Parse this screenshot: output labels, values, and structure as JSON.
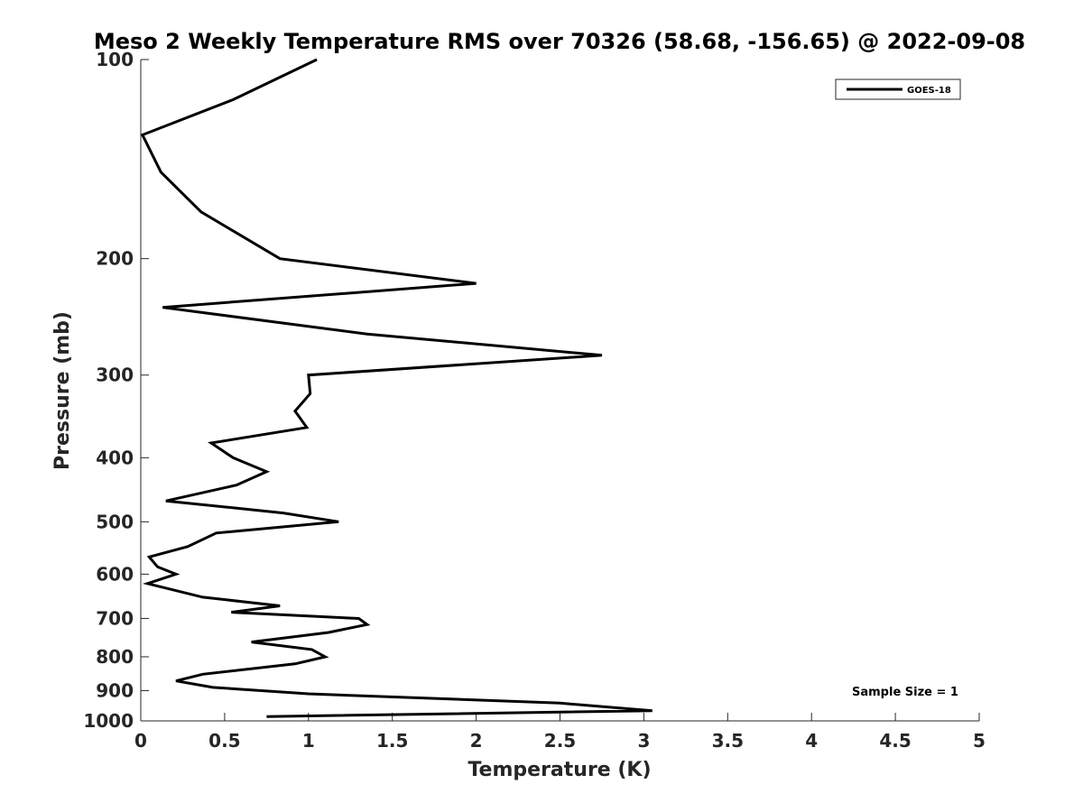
{
  "chart_data": {
    "type": "line",
    "title": "Meso 2 Weekly Temperature RMS over 70326 (58.68, -156.65) @ 2022-09-08",
    "xlabel": "Temperature (K)",
    "ylabel": "Pressure (mb)",
    "xlim": [
      0,
      5
    ],
    "ylim": [
      100,
      1000
    ],
    "y_scale": "log",
    "y_reversed": true,
    "x_ticks": [
      0,
      0.5,
      1,
      1.5,
      2,
      2.5,
      3,
      3.5,
      4,
      4.5,
      5
    ],
    "x_tick_labels": [
      "0",
      "0.5",
      "1",
      "1.5",
      "2",
      "2.5",
      "3",
      "3.5",
      "4",
      "4.5",
      "5"
    ],
    "y_ticks": [
      100,
      200,
      300,
      400,
      500,
      600,
      700,
      800,
      900,
      1000
    ],
    "y_tick_labels": [
      "100",
      "200",
      "300",
      "400",
      "500",
      "600",
      "700",
      "800",
      "900",
      "1000"
    ],
    "grid": false,
    "legend_position": "top-right",
    "series": [
      {
        "name": "GOES-18",
        "color": "#000000",
        "x": [
          1.05,
          0.55,
          0.01,
          0.12,
          0.36,
          0.83,
          2.0,
          0.13,
          1.35,
          2.75,
          1.0,
          1.01,
          0.92,
          0.99,
          0.42,
          0.55,
          0.75,
          0.57,
          0.15,
          0.85,
          1.18,
          0.45,
          0.28,
          0.05,
          0.1,
          0.21,
          0.04,
          0.37,
          0.83,
          0.54,
          1.3,
          1.35,
          1.12,
          0.66,
          1.02,
          1.1,
          0.92,
          0.37,
          0.21,
          0.43,
          1.0,
          2.5,
          3.05,
          0.75
        ],
        "y": [
          100,
          115,
          130,
          148,
          170,
          200,
          218,
          237,
          260,
          280,
          300,
          320,
          340,
          360,
          380,
          400,
          420,
          440,
          465,
          485,
          500,
          520,
          545,
          565,
          585,
          600,
          620,
          650,
          670,
          685,
          700,
          715,
          735,
          760,
          780,
          800,
          820,
          850,
          870,
          890,
          910,
          940,
          965,
          985
        ]
      }
    ],
    "annotations": [
      "Sample Size = 1"
    ]
  }
}
